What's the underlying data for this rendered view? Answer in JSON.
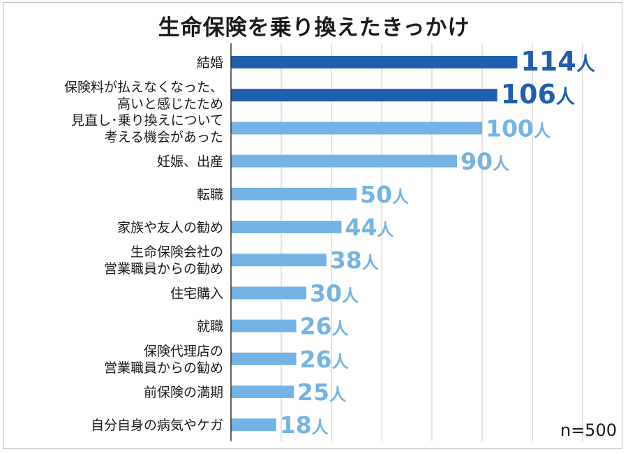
{
  "chart_data": {
    "type": "bar",
    "orientation": "horizontal",
    "title": "生命保険を乗り換えたきっかけ",
    "note": "n=500",
    "unit": "人",
    "categories": [
      [
        "結婚"
      ],
      [
        "保険料が払えなくなった、",
        "高いと感じたため"
      ],
      [
        "見直し･乗り換えについて",
        "考える機会があった"
      ],
      [
        "妊娠、出産"
      ],
      [
        "転職"
      ],
      [
        "家族や友人の勧め"
      ],
      [
        "生命保険会社の",
        "営業職員からの勧め"
      ],
      [
        "住宅購入"
      ],
      [
        "就職"
      ],
      [
        "保険代理店の",
        "営業職員からの勧め"
      ],
      [
        "前保険の満期"
      ],
      [
        "自分自身の病気やケガ"
      ]
    ],
    "values": [
      114,
      106,
      100,
      90,
      50,
      44,
      38,
      30,
      26,
      26,
      25,
      18
    ],
    "xlim": [
      0,
      150
    ],
    "grid": true,
    "colors": {
      "highlight": "#1f5fae",
      "normal": "#74b4e4",
      "grid": "#c8c8c8"
    },
    "highlight_count": 2
  }
}
